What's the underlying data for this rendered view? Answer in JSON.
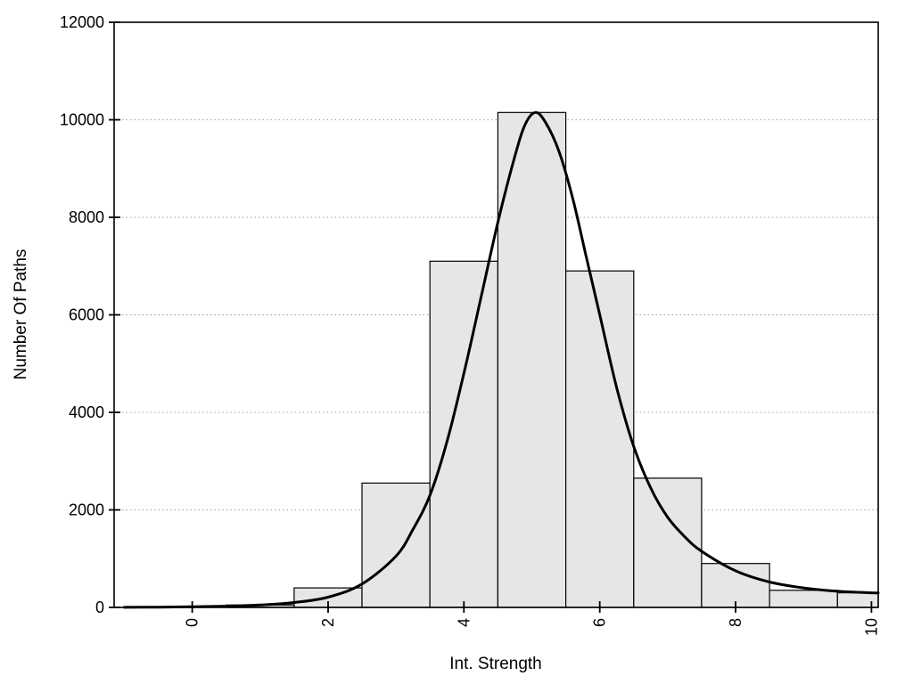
{
  "figure": {
    "background": "#ffffff"
  },
  "chart_data": {
    "type": "bar",
    "subtype": "histogram_with_fit_curve",
    "title": "",
    "xlabel": "Int. Strength",
    "ylabel": "Number Of Paths",
    "xlim": [
      -1.15,
      10.1
    ],
    "ylim": [
      0,
      12000
    ],
    "xticks": [
      0,
      2,
      4,
      6,
      8,
      10
    ],
    "yticks": [
      0,
      2000,
      4000,
      6000,
      8000,
      10000,
      12000
    ],
    "grid": {
      "horizontal": true,
      "vertical": false,
      "style": "dotted"
    },
    "legend": "none",
    "colors": {
      "bar_fill": "#e6e6e6",
      "bar_edge": "#000000",
      "curve": "#000000",
      "grid": "#9f9f9f",
      "axis": "#000000",
      "text": "#000000"
    },
    "histogram": {
      "bin_width": 1,
      "bin_centers": [
        0,
        1,
        2,
        3,
        4,
        5,
        6,
        7,
        8,
        9,
        10
      ],
      "counts": [
        0,
        50,
        400,
        2550,
        7100,
        10150,
        6900,
        2650,
        900,
        350,
        300
      ]
    },
    "fit_curve": {
      "peak_x": 5,
      "peak_y": 10150,
      "x": [
        -1.0,
        -0.5,
        0,
        0.5,
        1,
        1.5,
        2,
        2.5,
        3,
        3.25,
        3.5,
        3.75,
        4,
        4.25,
        4.5,
        4.75,
        4.9,
        5.05,
        5.2,
        5.4,
        5.6,
        5.8,
        6,
        6.25,
        6.5,
        6.75,
        7,
        7.25,
        7.5,
        8,
        8.5,
        9,
        9.5,
        10,
        10.1
      ],
      "y": [
        2,
        5,
        12,
        25,
        50,
        100,
        210,
        480,
        1050,
        1600,
        2300,
        3400,
        4800,
        6350,
        7900,
        9250,
        9900,
        10150,
        9950,
        9350,
        8400,
        7200,
        6000,
        4500,
        3300,
        2450,
        1850,
        1450,
        1150,
        750,
        520,
        400,
        330,
        300,
        295
      ]
    }
  }
}
